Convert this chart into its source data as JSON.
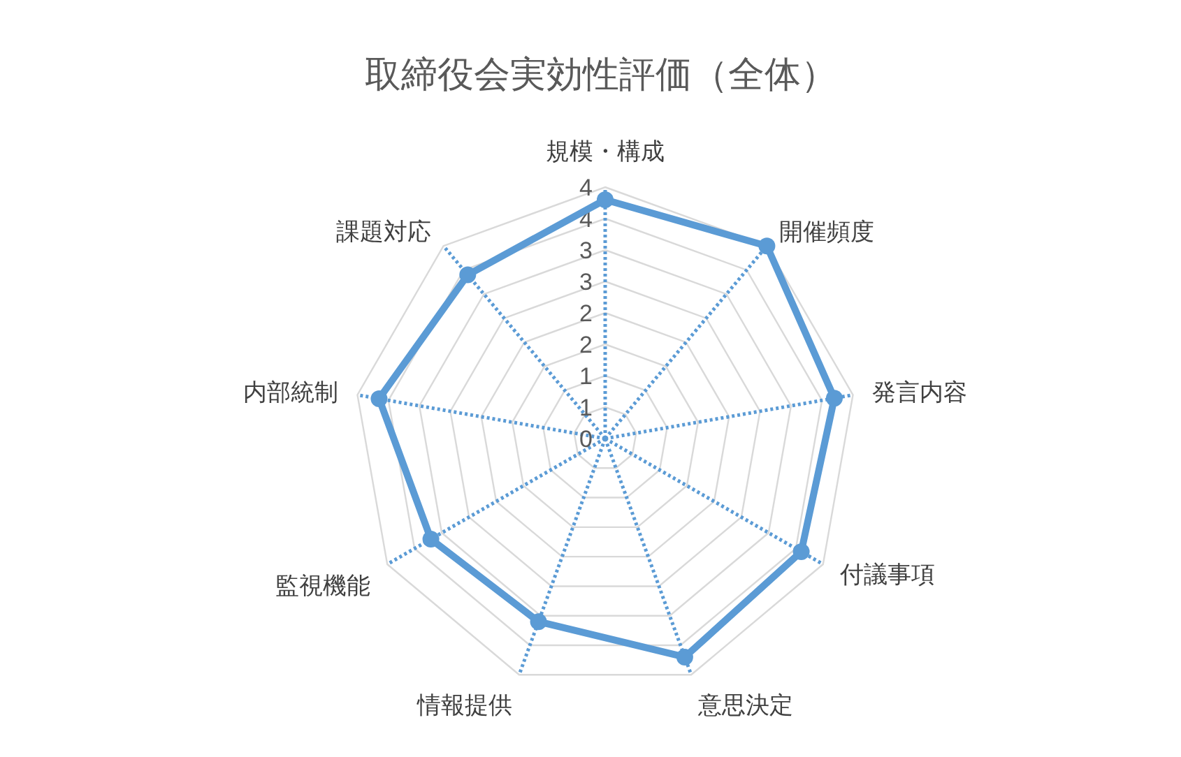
{
  "chart_data": {
    "type": "radar",
    "title": "取締役会実効性評価（全体）",
    "categories": [
      "規模・構成",
      "開催頻度",
      "発言内容",
      "付議事項",
      "意思決定",
      "情報提供",
      "監視機能",
      "内部統制",
      "課題対応"
    ],
    "series": [
      {
        "color": "#5b9bd5",
        "values": [
          3.8,
          4.0,
          3.7,
          3.6,
          3.7,
          3.1,
          3.2,
          3.65,
          3.4
        ]
      }
    ],
    "ylim": [
      0,
      4
    ],
    "yticks": [
      0,
      {
        "value": 0.5,
        "label": "1"
      },
      1,
      {
        "value": 1.5,
        "label": "2"
      },
      2,
      {
        "value": 2.5,
        "label": "3"
      },
      3,
      {
        "value": 3.5,
        "label": "4"
      },
      4
    ],
    "grid": true,
    "marker": "circle"
  }
}
